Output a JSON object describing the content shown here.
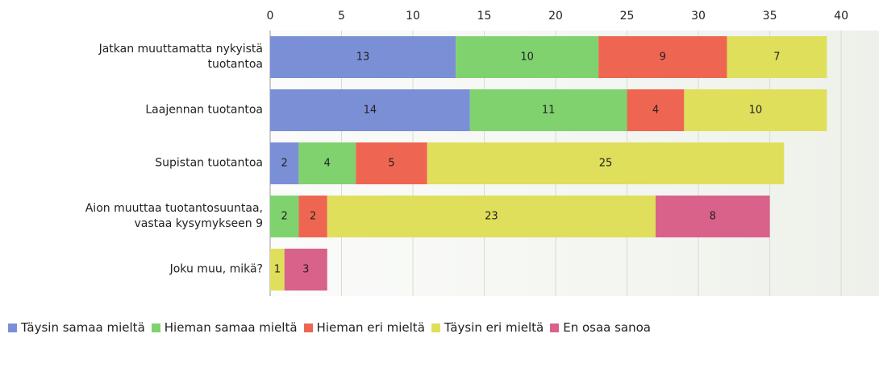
{
  "chart_data": {
    "type": "stacked-barh",
    "categories": [
      "Jatkan muuttamatta nykyistä\ntuotantoa",
      "Laajennan tuotantoa",
      "Supistan tuotantoa",
      "Aion muuttaa tuotantosuuntaa,\nvastaa kysymykseen 9",
      "Joku muu, mikä?"
    ],
    "series": [
      {
        "name": "Täysin samaa mieltä",
        "color": "#7b8fd6",
        "values": [
          13,
          14,
          2,
          null,
          null
        ]
      },
      {
        "name": "Hieman samaa mieltä",
        "color": "#80d26f",
        "values": [
          10,
          11,
          4,
          2,
          null
        ]
      },
      {
        "name": "Hieman eri mieltä",
        "color": "#ee6651",
        "values": [
          9,
          4,
          5,
          2,
          null
        ]
      },
      {
        "name": "Täysin eri mieltä",
        "color": "#dfdf5c",
        "values": [
          7,
          10,
          25,
          23,
          1
        ]
      },
      {
        "name": "En osaa sanoa",
        "color": "#d9628b",
        "values": [
          null,
          null,
          null,
          8,
          3
        ]
      }
    ],
    "xlim": [
      0,
      42.65
    ],
    "xticks": [
      0,
      5,
      10,
      15,
      20,
      25,
      30,
      35,
      40
    ],
    "grid": true,
    "legend": "bottom"
  }
}
